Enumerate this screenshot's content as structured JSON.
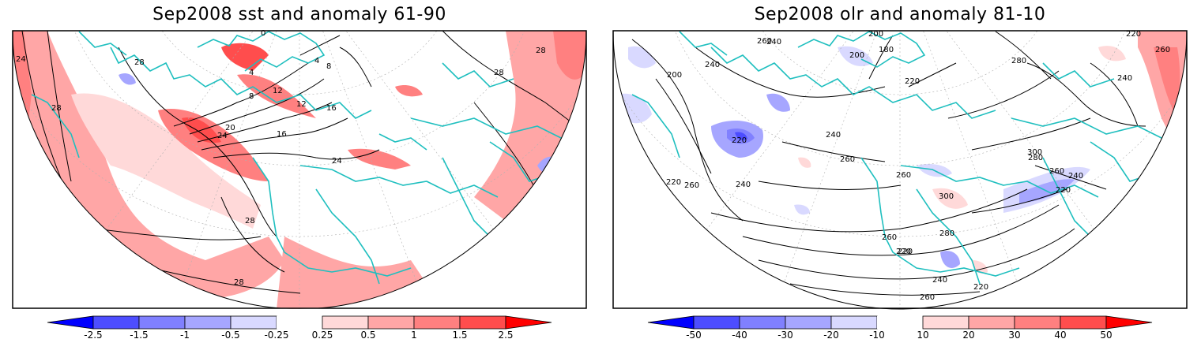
{
  "panels": [
    {
      "title": "Sep2008 sst and anomaly 61-90",
      "colorbar": {
        "labels": [
          "-2.5",
          "-1.5",
          "-1",
          "-0.5",
          "-0.25",
          "0.25",
          "0.5",
          "1",
          "1.5",
          "2.5"
        ],
        "colors": [
          "#0000ff",
          "#4d4dff",
          "#8080ff",
          "#a6a6ff",
          "#d9d9ff",
          "#ffffff",
          "#ffd9d9",
          "#ffa6a6",
          "#ff8080",
          "#ff4d4d",
          "#ff0000"
        ]
      },
      "contour_labels": [
        "0",
        "4",
        "8",
        "12",
        "16",
        "20",
        "24",
        "24",
        "28",
        "28",
        "28",
        "28",
        "28",
        "28",
        "4",
        "8",
        "12",
        "16",
        "24"
      ]
    },
    {
      "title": "Sep2008 olr and anomaly 81-10",
      "colorbar": {
        "labels": [
          "-50",
          "-40",
          "-30",
          "-20",
          "-10",
          "10",
          "20",
          "30",
          "40",
          "50"
        ],
        "colors": [
          "#0000ff",
          "#4d4dff",
          "#8080ff",
          "#a6a6ff",
          "#d9d9ff",
          "#ffffff",
          "#ffd9d9",
          "#ffa6a6",
          "#ff8080",
          "#ff4d4d",
          "#ff0000"
        ]
      },
      "contour_labels": [
        "260",
        "240",
        "200",
        "200",
        "180",
        "220",
        "240",
        "260",
        "280",
        "300",
        "200",
        "240",
        "220",
        "220",
        "240",
        "260",
        "280",
        "300",
        "260",
        "240",
        "220",
        "220",
        "260",
        "260",
        "240",
        "220",
        "240",
        "260",
        "280",
        "260",
        "220",
        "220"
      ]
    }
  ],
  "colors": {
    "coastline": "#1fbfbf",
    "contour": "#000000",
    "frame": "#000000",
    "grid": "#b0b0b0"
  }
}
